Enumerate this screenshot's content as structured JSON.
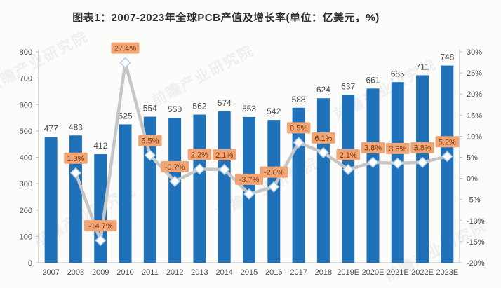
{
  "title": "图表1：2007-2023年全球PCB产值及增长率(单位：亿美元，%)",
  "watermark": {
    "text": "前瞻产业研究院"
  },
  "chart_data": {
    "type": "combo",
    "title": "图表1：2007-2023年全球PCB产值及增长率(单位：亿美元，%)",
    "categories": [
      "2007",
      "2008",
      "2009",
      "2010",
      "2011",
      "2012",
      "2013",
      "2014",
      "2015",
      "2016",
      "2017",
      "2018",
      "2019E",
      "2020E",
      "2021E",
      "2022E",
      "2023E"
    ],
    "series": [
      {
        "name": "全球PCB产值(亿美元)",
        "type": "bar",
        "axis": "left",
        "values": [
          477,
          483,
          412,
          525,
          554,
          550,
          562,
          574,
          553,
          542,
          588,
          624,
          637,
          661,
          685,
          711,
          748
        ]
      },
      {
        "name": "增长率(%)",
        "type": "line",
        "axis": "right",
        "values": [
          null,
          1.3,
          -14.7,
          27.4,
          5.5,
          -0.7,
          2.2,
          2.1,
          -3.7,
          -2.0,
          8.5,
          6.1,
          2.1,
          3.8,
          3.6,
          3.8,
          5.2
        ],
        "labels": [
          null,
          "1.3%",
          "-14.7%",
          "27.4%",
          "5.5%",
          "-0.7%",
          "2.2%",
          "2.1%",
          "-3.7%",
          "-2.0%",
          "8.5%",
          "6.1%",
          "2.1%",
          "3.8%",
          "3.6%",
          "3.8%",
          "5.2%"
        ]
      }
    ],
    "left_axis": {
      "min": 0,
      "max": 800,
      "step": 100,
      "labels": [
        "0",
        "100",
        "200",
        "300",
        "400",
        "500",
        "600",
        "700",
        "800"
      ]
    },
    "right_axis": {
      "min": -20,
      "max": 30,
      "step": 5,
      "labels": [
        "-20%",
        "-15%",
        "-10%",
        "-5%",
        "0%",
        "5%",
        "10%",
        "15%",
        "20%",
        "25%",
        "30%"
      ]
    },
    "grid": false,
    "legend": "none",
    "styles": {
      "bar_color": "#1f72ba",
      "line_color": "#c6c6c6",
      "marker_fill": "#ffffff",
      "marker_stroke": "#b5cfe2",
      "callout_bg": "#f0a576",
      "callout_text": "#7e3a06",
      "axis_text": "#4d4d4d",
      "value_text": "#4a4a4a",
      "axis_line": "#bdbdbd"
    }
  }
}
